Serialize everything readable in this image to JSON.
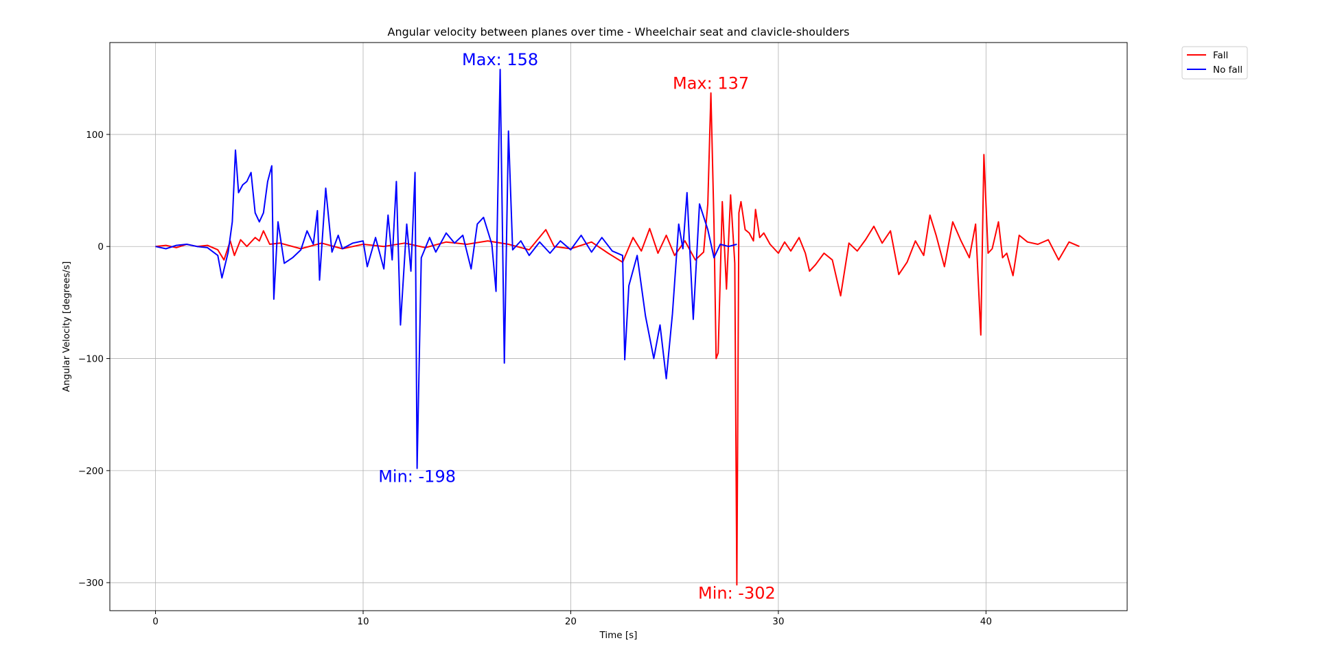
{
  "chart_data": {
    "type": "line",
    "title": "Angular velocity between planes over time - Wheelchair seat and clavicle-shoulders",
    "xlabel": "Time [s]",
    "ylabel": "Angular Velocity [degrees/s]",
    "xlim": [
      -2.2,
      46.8
    ],
    "ylim": [
      -325,
      182
    ],
    "xticks": [
      0,
      10,
      20,
      30,
      40
    ],
    "yticks": [
      100,
      0,
      -100,
      -200,
      -300
    ],
    "xtick_labels": [
      "0",
      "10",
      "20",
      "30",
      "40"
    ],
    "ytick_labels": [
      "100",
      "0",
      "−100",
      "−200",
      "−300"
    ],
    "grid": true,
    "legend": "outside-top-right",
    "series": [
      {
        "name": "Fall",
        "color": "#ff0000",
        "points": [
          [
            0,
            0
          ],
          [
            0.5,
            1
          ],
          [
            1,
            -1
          ],
          [
            1.5,
            2
          ],
          [
            2,
            0
          ],
          [
            2.5,
            1
          ],
          [
            3,
            -3
          ],
          [
            3.3,
            -12
          ],
          [
            3.6,
            5
          ],
          [
            3.8,
            -8
          ],
          [
            4.1,
            6
          ],
          [
            4.4,
            0
          ],
          [
            4.8,
            8
          ],
          [
            5,
            5
          ],
          [
            5.2,
            14
          ],
          [
            5.5,
            2
          ],
          [
            6,
            3
          ],
          [
            7,
            -2
          ],
          [
            8,
            3
          ],
          [
            9,
            -2
          ],
          [
            10,
            2
          ],
          [
            11,
            0
          ],
          [
            12,
            3
          ],
          [
            13,
            -1
          ],
          [
            14,
            4
          ],
          [
            15,
            2
          ],
          [
            16,
            5
          ],
          [
            17,
            2
          ],
          [
            18,
            -3
          ],
          [
            18.8,
            15
          ],
          [
            19.2,
            0
          ],
          [
            20,
            -2
          ],
          [
            21,
            4
          ],
          [
            21.8,
            -6
          ],
          [
            22.5,
            -14
          ],
          [
            23,
            8
          ],
          [
            23.4,
            -4
          ],
          [
            23.8,
            16
          ],
          [
            24.2,
            -6
          ],
          [
            24.6,
            10
          ],
          [
            25,
            -8
          ],
          [
            25.5,
            5
          ],
          [
            26,
            -12
          ],
          [
            26.4,
            -5
          ],
          [
            26.6,
            38
          ],
          [
            26.75,
            137
          ],
          [
            26.9,
            20
          ],
          [
            27,
            -100
          ],
          [
            27.1,
            -95
          ],
          [
            27.3,
            40
          ],
          [
            27.5,
            -38
          ],
          [
            27.7,
            46
          ],
          [
            27.9,
            -15
          ],
          [
            28,
            -302
          ],
          [
            28.1,
            30
          ],
          [
            28.2,
            40
          ],
          [
            28.4,
            15
          ],
          [
            28.6,
            12
          ],
          [
            28.8,
            5
          ],
          [
            28.9,
            33
          ],
          [
            29.1,
            8
          ],
          [
            29.3,
            12
          ],
          [
            29.6,
            2
          ],
          [
            30,
            -6
          ],
          [
            30.3,
            4
          ],
          [
            30.6,
            -4
          ],
          [
            31,
            8
          ],
          [
            31.3,
            -6
          ],
          [
            31.5,
            -22
          ],
          [
            31.8,
            -16
          ],
          [
            32.2,
            -6
          ],
          [
            32.6,
            -12
          ],
          [
            33,
            -44
          ],
          [
            33.4,
            3
          ],
          [
            33.8,
            -4
          ],
          [
            34.2,
            6
          ],
          [
            34.6,
            18
          ],
          [
            35,
            3
          ],
          [
            35.4,
            14
          ],
          [
            35.8,
            -25
          ],
          [
            36.2,
            -14
          ],
          [
            36.6,
            5
          ],
          [
            37,
            -8
          ],
          [
            37.3,
            28
          ],
          [
            37.6,
            10
          ],
          [
            38,
            -18
          ],
          [
            38.4,
            22
          ],
          [
            38.8,
            5
          ],
          [
            39.2,
            -10
          ],
          [
            39.5,
            20
          ],
          [
            39.75,
            -79
          ],
          [
            39.9,
            82
          ],
          [
            40.1,
            -6
          ],
          [
            40.3,
            -2
          ],
          [
            40.6,
            22
          ],
          [
            40.8,
            -10
          ],
          [
            41,
            -6
          ],
          [
            41.3,
            -26
          ],
          [
            41.6,
            10
          ],
          [
            42,
            4
          ],
          [
            42.5,
            2
          ],
          [
            43,
            6
          ],
          [
            43.5,
            -12
          ],
          [
            44,
            4
          ],
          [
            44.5,
            0
          ]
        ]
      },
      {
        "name": "No fall",
        "color": "#0000ff",
        "points": [
          [
            0,
            0
          ],
          [
            0.5,
            -2
          ],
          [
            1,
            1
          ],
          [
            1.5,
            2
          ],
          [
            2,
            0
          ],
          [
            2.5,
            -1
          ],
          [
            3,
            -8
          ],
          [
            3.2,
            -28
          ],
          [
            3.5,
            -5
          ],
          [
            3.7,
            22
          ],
          [
            3.85,
            86
          ],
          [
            4,
            48
          ],
          [
            4.2,
            55
          ],
          [
            4.4,
            58
          ],
          [
            4.6,
            66
          ],
          [
            4.8,
            30
          ],
          [
            5,
            22
          ],
          [
            5.2,
            30
          ],
          [
            5.4,
            58
          ],
          [
            5.6,
            72
          ],
          [
            5.7,
            -47
          ],
          [
            5.9,
            22
          ],
          [
            6.2,
            -15
          ],
          [
            6.6,
            -10
          ],
          [
            7,
            -3
          ],
          [
            7.3,
            14
          ],
          [
            7.6,
            2
          ],
          [
            7.8,
            32
          ],
          [
            7.9,
            -30
          ],
          [
            8.2,
            52
          ],
          [
            8.5,
            -5
          ],
          [
            8.8,
            10
          ],
          [
            9,
            -2
          ],
          [
            9.5,
            3
          ],
          [
            10,
            5
          ],
          [
            10.2,
            -18
          ],
          [
            10.6,
            8
          ],
          [
            11,
            -20
          ],
          [
            11.2,
            28
          ],
          [
            11.4,
            -12
          ],
          [
            11.6,
            58
          ],
          [
            11.8,
            -70
          ],
          [
            12.1,
            20
          ],
          [
            12.3,
            -22
          ],
          [
            12.5,
            66
          ],
          [
            12.6,
            -198
          ],
          [
            12.8,
            -10
          ],
          [
            13.2,
            8
          ],
          [
            13.5,
            -5
          ],
          [
            14,
            12
          ],
          [
            14.4,
            3
          ],
          [
            14.8,
            10
          ],
          [
            15.2,
            -20
          ],
          [
            15.5,
            20
          ],
          [
            15.8,
            26
          ],
          [
            16.2,
            2
          ],
          [
            16.4,
            -40
          ],
          [
            16.6,
            158
          ],
          [
            16.8,
            -104
          ],
          [
            17,
            103
          ],
          [
            17.2,
            -3
          ],
          [
            17.6,
            5
          ],
          [
            18,
            -8
          ],
          [
            18.5,
            4
          ],
          [
            19,
            -6
          ],
          [
            19.5,
            5
          ],
          [
            20,
            -3
          ],
          [
            20.5,
            10
          ],
          [
            21,
            -5
          ],
          [
            21.5,
            8
          ],
          [
            22,
            -4
          ],
          [
            22.5,
            -8
          ],
          [
            22.6,
            -101
          ],
          [
            22.8,
            -35
          ],
          [
            23.2,
            -8
          ],
          [
            23.6,
            -62
          ],
          [
            24,
            -100
          ],
          [
            24.3,
            -70
          ],
          [
            24.6,
            -118
          ],
          [
            24.9,
            -60
          ],
          [
            25.2,
            20
          ],
          [
            25.4,
            -2
          ],
          [
            25.6,
            48
          ],
          [
            25.9,
            -65
          ],
          [
            26.2,
            38
          ],
          [
            26.6,
            15
          ],
          [
            26.9,
            -10
          ],
          [
            27.2,
            2
          ],
          [
            27.6,
            0
          ],
          [
            28,
            2
          ]
        ]
      }
    ],
    "annotations": [
      {
        "text": "Max: 158",
        "x": 16.6,
        "y": 158,
        "color": "#0000ff"
      },
      {
        "text": "Min: -198",
        "x": 12.6,
        "y": -198,
        "color": "#0000ff"
      },
      {
        "text": "Max: 137",
        "x": 26.75,
        "y": 137,
        "color": "#ff0000"
      },
      {
        "text": "Min: -302",
        "x": 28,
        "y": -302,
        "color": "#ff0000"
      }
    ]
  }
}
